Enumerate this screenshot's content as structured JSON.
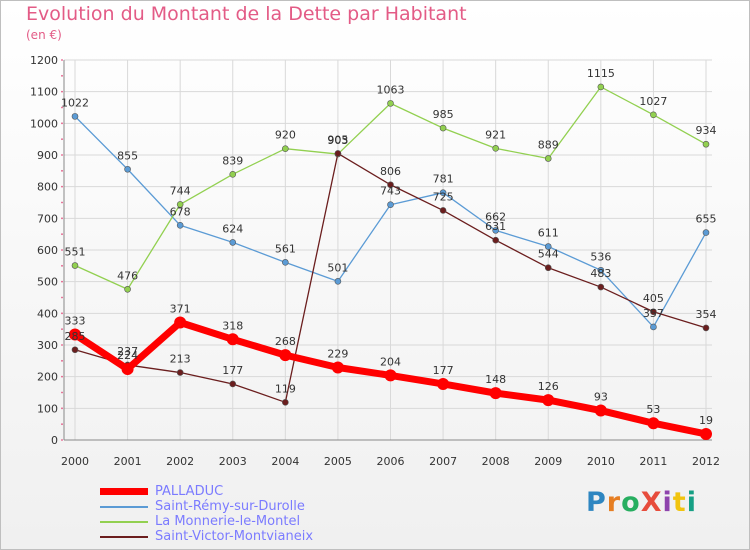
{
  "header": {
    "title": "Evolution du Montant de la Dette par Habitant",
    "subtitle": "(en €)"
  },
  "logo": {
    "text": "ProXiti"
  },
  "colors": {
    "PALLADUC": "#ff0000",
    "Saint-Rémy-sur-Durolle": "#5b9bd5",
    "La Monnerie-le-Montel": "#92d050",
    "Saint-Victor-Montvianeix": "#6b1e1e",
    "title": "#e35b86",
    "legend_text": "#7b7bff"
  },
  "chart_data": {
    "type": "line",
    "title": "Evolution du Montant de la Dette par Habitant",
    "subtitle": "(en €)",
    "xlabel": "",
    "ylabel": "",
    "x": [
      "2000",
      "2001",
      "2002",
      "2003",
      "2004",
      "2005",
      "2006",
      "2007",
      "2008",
      "2009",
      "2010",
      "2011",
      "2012"
    ],
    "ylim": [
      0,
      1200
    ],
    "yticks": [
      "0",
      "100",
      "200",
      "300",
      "400",
      "500",
      "600",
      "700",
      "800",
      "900",
      "1000",
      "1100",
      "1200"
    ],
    "grid": true,
    "legend_position": "bottom-left",
    "series": [
      {
        "name": "PALLADUC",
        "values": [
          333,
          224,
          371,
          318,
          268,
          229,
          204,
          177,
          148,
          126,
          93,
          53,
          19
        ],
        "labels": [
          "333",
          "224",
          "371",
          "318",
          "268",
          "229",
          "204",
          "177",
          "148",
          "126",
          "93",
          "53",
          "19"
        ]
      },
      {
        "name": "Saint-Rémy-sur-Durolle",
        "values": [
          1022,
          855,
          678,
          624,
          561,
          501,
          743,
          781,
          662,
          611,
          536,
          357,
          655
        ],
        "labels": [
          "1022",
          "855",
          "678",
          "624",
          "561",
          "501",
          "743",
          "781",
          "662",
          "611",
          "536",
          "357",
          "655"
        ]
      },
      {
        "name": "La Monnerie-le-Montel",
        "values": [
          551,
          476,
          744,
          839,
          920,
          903,
          1063,
          985,
          921,
          889,
          1115,
          1027,
          934
        ],
        "labels": [
          "551",
          "476",
          "744",
          "839",
          "920",
          "903",
          "1063",
          "985",
          "921",
          "889",
          "1115",
          "1027",
          "934"
        ]
      },
      {
        "name": "Saint-Victor-Montvianeix",
        "values": [
          285,
          237,
          213,
          177,
          119,
          905,
          806,
          725,
          631,
          544,
          483,
          405,
          354
        ],
        "labels": [
          "285",
          "237",
          "213",
          "177",
          "119",
          "905",
          "806",
          "725",
          "631",
          "544",
          "483",
          "405",
          "354"
        ]
      }
    ]
  }
}
